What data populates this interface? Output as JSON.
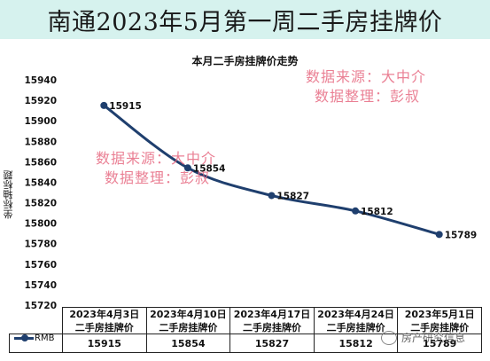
{
  "banner_title": "南通2023年5月第一周二手房挂牌价",
  "watermark": {
    "line1": "数据来源：大中介",
    "line2": "数据整理：彭叔"
  },
  "wechat_text": "房产研究信息",
  "chart_data": {
    "type": "line",
    "title": "本月二手房挂牌价走势",
    "ylabel": "坐标轴标题",
    "xlabel": "",
    "ylim": [
      15720,
      15940
    ],
    "yticks": [
      15720,
      15740,
      15760,
      15780,
      15800,
      15820,
      15840,
      15860,
      15880,
      15900,
      15920,
      15940
    ],
    "categories": [
      "2023年4月3日二手房挂牌价",
      "2023年4月10日二手房挂牌价",
      "2023年4月17日二手房挂牌价",
      "2023年4月24日二手房挂牌价",
      "2023年5月1日二手房挂牌价"
    ],
    "series": [
      {
        "name": "RMB",
        "values": [
          15915,
          15854,
          15827,
          15812,
          15789
        ],
        "color": "#1f3f6e"
      }
    ],
    "grid": false,
    "legend": "table-left",
    "data_table": true
  }
}
